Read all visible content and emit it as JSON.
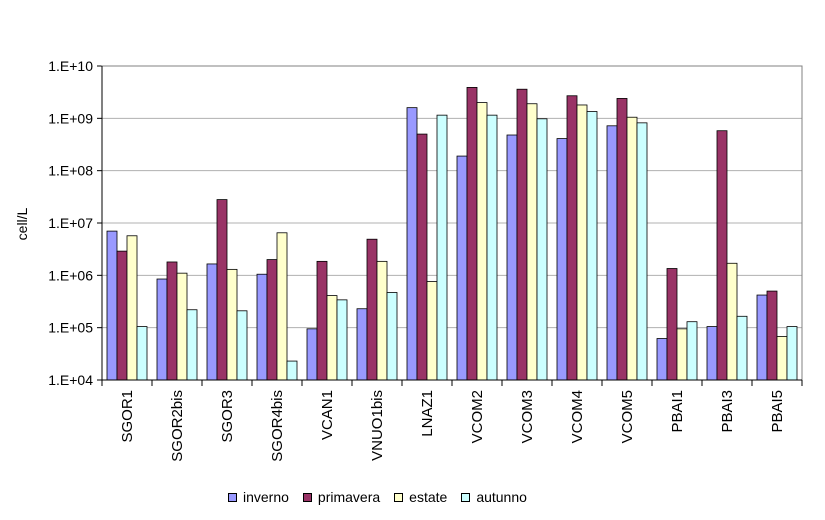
{
  "chart_data": {
    "type": "bar",
    "title": "",
    "xlabel": "",
    "ylabel": "cell/L",
    "yscale": "log",
    "ylim": [
      10000,
      10000000000
    ],
    "yticks": [
      "1.E+04",
      "1.E+05",
      "1.E+06",
      "1.E+07",
      "1.E+08",
      "1.E+09",
      "1.E+10"
    ],
    "grid": true,
    "legend_position": "bottom",
    "categories": [
      "SGOR1",
      "SGOR2bis",
      "SGOR3",
      "SGOR4bis",
      "VCAN1",
      "VNUO1bis",
      "LNAZ1",
      "VCOM2",
      "VCOM3",
      "VCOM4",
      "VCOM5",
      "PBAI1",
      "PBAI3",
      "PBAI5"
    ],
    "series": [
      {
        "name": "inverno",
        "color": "#9999ff",
        "values": [
          7000000,
          850000,
          1650000,
          1050000,
          95000,
          230000,
          1600000000,
          190000000,
          480000000,
          410000000,
          720000000,
          62000,
          105000,
          420000
        ]
      },
      {
        "name": "primavera",
        "color": "#993366",
        "values": [
          2900000,
          1800000,
          28000000,
          2000000,
          1850000,
          4900000,
          500000000,
          3900000000,
          3600000000,
          2700000000,
          2400000000,
          1350000,
          580000000,
          500000
        ]
      },
      {
        "name": "estate",
        "color": "#ffffcc",
        "values": [
          5700000,
          1100000,
          1300000,
          6500000,
          410000,
          1850000,
          760000,
          2000000000,
          1900000000,
          1800000000,
          1050000000,
          95000,
          1700000,
          68000
        ]
      },
      {
        "name": "autunno",
        "color": "#ccffff",
        "values": [
          105000,
          220000,
          210000,
          23000,
          340000,
          470000,
          1150000000,
          1150000000,
          980000000,
          1350000000,
          820000000,
          130000,
          165000,
          105000
        ]
      }
    ]
  }
}
